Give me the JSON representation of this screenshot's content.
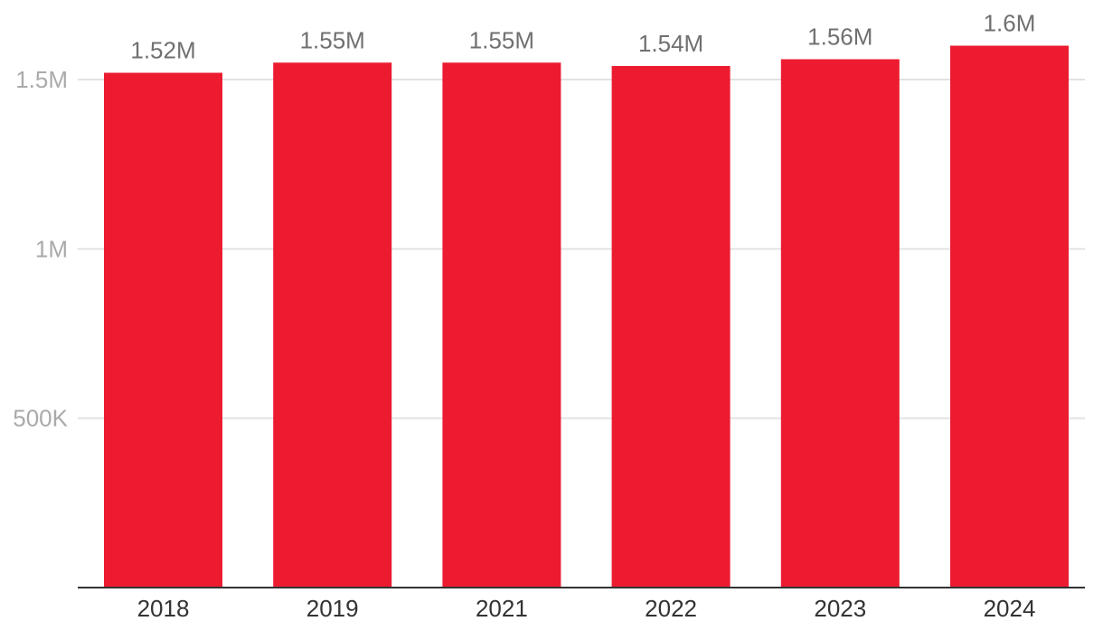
{
  "chart_data": {
    "type": "bar",
    "title": "",
    "xlabel": "",
    "ylabel": "",
    "categories": [
      "2018",
      "2019",
      "2021",
      "2022",
      "2023",
      "2024"
    ],
    "values": [
      1520000,
      1550000,
      1550000,
      1540000,
      1560000,
      1600000
    ],
    "data_labels": [
      "1.52M",
      "1.55M",
      "1.55M",
      "1.54M",
      "1.56M",
      "1.6M"
    ],
    "ylim": [
      0,
      1500000
    ],
    "y_ticks": [
      {
        "value": 500000,
        "label": "500K"
      },
      {
        "value": 1000000,
        "label": "1M"
      },
      {
        "value": 1500000,
        "label": "1.5M"
      }
    ],
    "grid": true,
    "legend": "none",
    "bar_color": "#ec1b30"
  }
}
